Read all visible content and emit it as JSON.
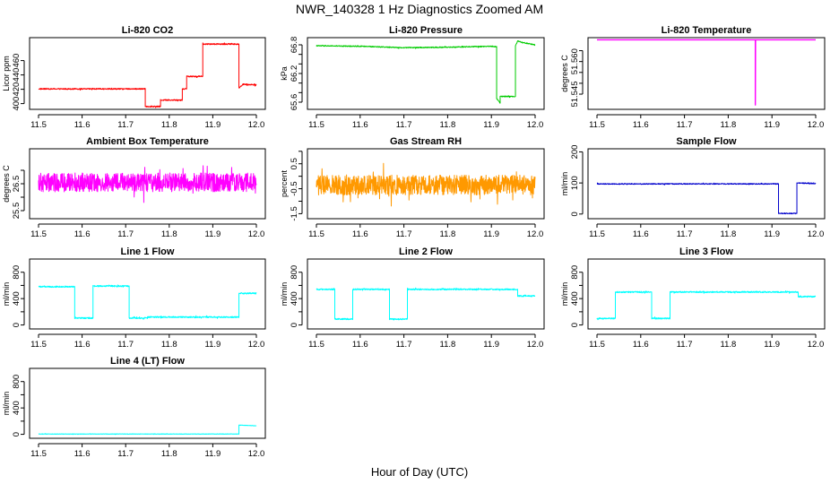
{
  "figure": {
    "title": "NWR_140328  1 Hz Diagnostics Zoomed AM",
    "xlabel": "Hour of Day (UTC)"
  },
  "chart_data": [
    {
      "type": "line",
      "title": "Li-820 CO2",
      "ylabel": "Licor ppm",
      "xlim": [
        11.5,
        12.0
      ],
      "ylim": [
        392,
        492
      ],
      "yticks": [
        400,
        420,
        440,
        460
      ],
      "xticks": [
        11.5,
        11.6,
        11.7,
        11.8,
        11.9,
        12.0
      ],
      "color": "#ff0000",
      "noise": 0.8,
      "series": [
        {
          "segments": [
            [
              11.5,
              420.5
            ],
            [
              11.745,
              420.5
            ],
            [
              11.745,
              396
            ],
            [
              11.78,
              396
            ],
            [
              11.78,
              405
            ],
            [
              11.83,
              405
            ],
            [
              11.83,
              420.5
            ],
            [
              11.84,
              420.5
            ],
            [
              11.84,
              438
            ],
            [
              11.877,
              438
            ],
            [
              11.877,
              483
            ],
            [
              11.96,
              483
            ],
            [
              11.96,
              422
            ],
            [
              11.97,
              427
            ],
            [
              12.0,
              426
            ]
          ]
        }
      ]
    },
    {
      "type": "line",
      "title": "Li-820 Pressure",
      "ylabel": "kPa",
      "xlim": [
        11.5,
        12.0
      ],
      "ylim": [
        65.45,
        66.95
      ],
      "yticks": [
        65.6,
        66.2,
        66.8
      ],
      "extra_yticks": [
        66.0,
        66.4,
        66.6,
        65.8
      ],
      "xticks": [
        11.5,
        11.6,
        11.7,
        11.8,
        11.9,
        12.0
      ],
      "color": "#00cc00",
      "noise": 0.01,
      "series": [
        {
          "segments": [
            [
              11.5,
              66.78
            ],
            [
              11.6,
              66.77
            ],
            [
              11.7,
              66.74
            ],
            [
              11.8,
              66.75
            ],
            [
              11.9,
              66.77
            ],
            [
              11.912,
              66.76
            ],
            [
              11.912,
              65.68
            ],
            [
              11.92,
              65.58
            ],
            [
              11.92,
              65.72
            ],
            [
              11.955,
              65.72
            ],
            [
              11.955,
              66.78
            ],
            [
              11.96,
              66.88
            ],
            [
              11.97,
              66.85
            ],
            [
              12.0,
              66.8
            ]
          ]
        }
      ]
    },
    {
      "type": "line",
      "title": "Li-820 Temperature",
      "ylabel": "degrees C",
      "xlim": [
        11.5,
        12.0
      ],
      "ylim": [
        51.538,
        51.571
      ],
      "yticks": [
        51.545,
        51.56
      ],
      "extra_yticks": [
        51.55,
        51.555,
        51.565
      ],
      "xticks": [
        11.5,
        11.6,
        11.7,
        11.8,
        11.9,
        12.0
      ],
      "color": "#ff00ff",
      "noise": 0,
      "series": [
        {
          "segments": [
            [
              11.5,
              51.57
            ],
            [
              11.862,
              51.57
            ],
            [
              11.862,
              51.54
            ],
            [
              11.8625,
              51.57
            ],
            [
              12.0,
              51.57
            ]
          ]
        }
      ]
    },
    {
      "type": "line",
      "title": "Ambient Box Temperature",
      "ylabel": "degrees C",
      "xlim": [
        11.5,
        12.0
      ],
      "ylim": [
        25.2,
        27.8
      ],
      "yticks": [
        25.5,
        26.5
      ],
      "extra_yticks": [
        26.0,
        27.0
      ],
      "xticks": [
        11.5,
        11.6,
        11.7,
        11.8,
        11.9,
        12.0
      ],
      "color": "#ff00ff",
      "noise": 0.35,
      "series": [
        {
          "segments": [
            [
              11.5,
              26.55
            ],
            [
              12.0,
              26.55
            ]
          ]
        }
      ]
    },
    {
      "type": "line",
      "title": "Gas Stream RH",
      "ylabel": "percent",
      "xlim": [
        11.5,
        12.0
      ],
      "ylim": [
        -1.7,
        1.1
      ],
      "yticks": [
        -1.5,
        -0.5,
        0.5
      ],
      "extra_yticks": [
        -1.0,
        0.0,
        1.0
      ],
      "xticks": [
        11.5,
        11.6,
        11.7,
        11.8,
        11.9,
        12.0
      ],
      "color": "#ff9900",
      "noise": 0.4,
      "series": [
        {
          "segments": [
            [
              11.5,
              -0.35
            ],
            [
              12.0,
              -0.35
            ]
          ]
        }
      ]
    },
    {
      "type": "line",
      "title": "Sample Flow",
      "ylabel": "ml/min",
      "xlim": [
        11.5,
        12.0
      ],
      "ylim": [
        -15,
        210
      ],
      "yticks": [
        0,
        100,
        200
      ],
      "xticks": [
        11.5,
        11.6,
        11.7,
        11.8,
        11.9,
        12.0
      ],
      "color": "#0000cc",
      "noise": 1.5,
      "series": [
        {
          "segments": [
            [
              11.5,
              97
            ],
            [
              11.915,
              97
            ],
            [
              11.915,
              2
            ],
            [
              11.957,
              2
            ],
            [
              11.957,
              100
            ],
            [
              12.0,
              98
            ]
          ]
        }
      ]
    },
    {
      "type": "line",
      "title": "Line 1 Flow",
      "ylabel": "ml/min",
      "xlim": [
        11.5,
        12.0
      ],
      "ylim": [
        -60,
        1000
      ],
      "yticks": [
        0,
        400,
        800
      ],
      "extra_yticks": [
        200,
        600
      ],
      "xticks": [
        11.5,
        11.6,
        11.7,
        11.8,
        11.9,
        12.0
      ],
      "color": "#00ffff",
      "noise": 10,
      "series": [
        {
          "segments": [
            [
              11.5,
              580
            ],
            [
              11.583,
              580
            ],
            [
              11.583,
              105
            ],
            [
              11.625,
              105
            ],
            [
              11.625,
              590
            ],
            [
              11.708,
              590
            ],
            [
              11.708,
              105
            ],
            [
              11.75,
              105
            ],
            [
              11.75,
              120
            ],
            [
              11.96,
              120
            ],
            [
              11.96,
              480
            ],
            [
              12.0,
              480
            ]
          ]
        }
      ]
    },
    {
      "type": "line",
      "title": "Line 2 Flow",
      "ylabel": "ml/min",
      "xlim": [
        11.5,
        12.0
      ],
      "ylim": [
        -60,
        1000
      ],
      "yticks": [
        0,
        400,
        800
      ],
      "extra_yticks": [
        200,
        600
      ],
      "xticks": [
        11.5,
        11.6,
        11.7,
        11.8,
        11.9,
        12.0
      ],
      "color": "#00ffff",
      "noise": 10,
      "series": [
        {
          "segments": [
            [
              11.5,
              540
            ],
            [
              11.542,
              540
            ],
            [
              11.542,
              90
            ],
            [
              11.583,
              90
            ],
            [
              11.583,
              540
            ],
            [
              11.667,
              540
            ],
            [
              11.667,
              90
            ],
            [
              11.708,
              90
            ],
            [
              11.708,
              540
            ],
            [
              11.96,
              540
            ],
            [
              11.96,
              440
            ],
            [
              12.0,
              440
            ]
          ]
        }
      ]
    },
    {
      "type": "line",
      "title": "Line 3 Flow",
      "ylabel": "ml/min",
      "xlim": [
        11.5,
        12.0
      ],
      "ylim": [
        -60,
        1000
      ],
      "yticks": [
        0,
        400,
        800
      ],
      "extra_yticks": [
        200,
        600
      ],
      "xticks": [
        11.5,
        11.6,
        11.7,
        11.8,
        11.9,
        12.0
      ],
      "color": "#00ffff",
      "noise": 10,
      "series": [
        {
          "segments": [
            [
              11.5,
              100
            ],
            [
              11.542,
              100
            ],
            [
              11.542,
              500
            ],
            [
              11.625,
              500
            ],
            [
              11.625,
              100
            ],
            [
              11.667,
              100
            ],
            [
              11.667,
              500
            ],
            [
              11.96,
              500
            ],
            [
              11.96,
              430
            ],
            [
              12.0,
              430
            ]
          ]
        }
      ]
    },
    {
      "type": "line",
      "title": "Line 4 (LT) Flow",
      "ylabel": "ml/min",
      "xlim": [
        11.5,
        12.0
      ],
      "ylim": [
        -60,
        1000
      ],
      "yticks": [
        0,
        400,
        800
      ],
      "extra_yticks": [
        200,
        600
      ],
      "xticks": [
        11.5,
        11.6,
        11.7,
        11.8,
        11.9,
        12.0
      ],
      "color": "#00ffff",
      "noise": 3,
      "series": [
        {
          "segments": [
            [
              11.5,
              5
            ],
            [
              11.96,
              5
            ],
            [
              11.96,
              140
            ],
            [
              12.0,
              130
            ]
          ]
        }
      ]
    }
  ]
}
